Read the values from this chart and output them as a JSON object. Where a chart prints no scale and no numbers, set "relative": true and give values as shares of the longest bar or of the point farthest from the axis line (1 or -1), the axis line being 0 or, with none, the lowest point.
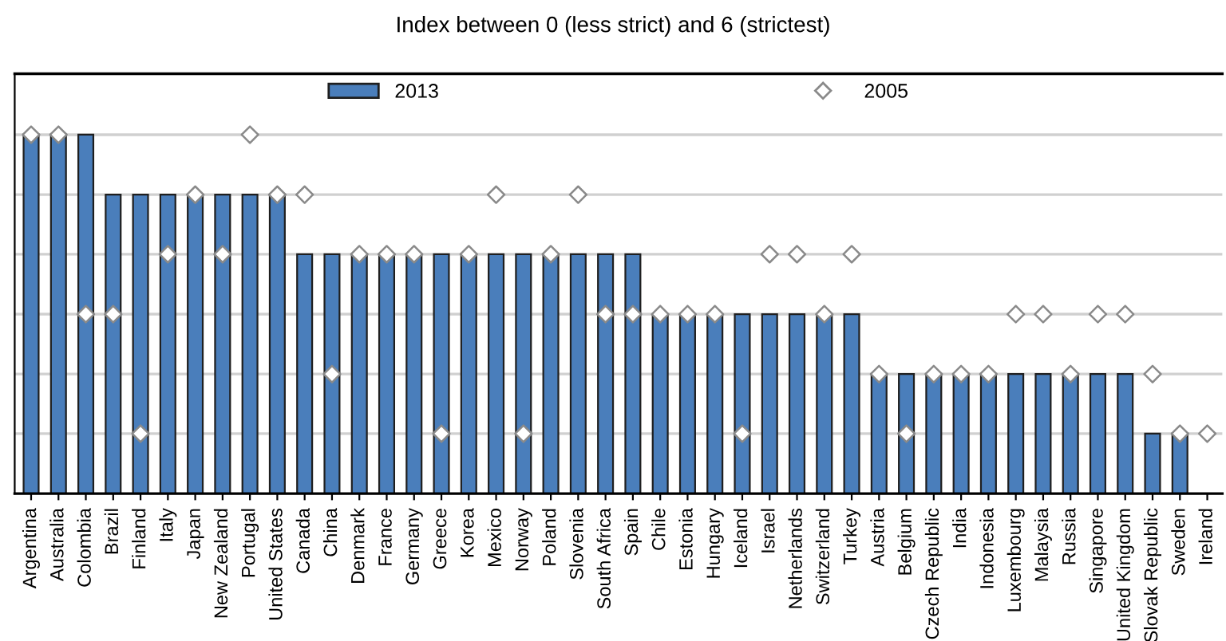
{
  "chart_data": {
    "type": "bar",
    "title": "Index between 0 (less strict) and 6 (strictest)",
    "relative": true,
    "grid": true,
    "legend": "top",
    "categories": [
      "Argentina",
      "Australia",
      "Colombia",
      "Brazil",
      "Finland",
      "Italy",
      "Japan",
      "New Zealand",
      "Portugal",
      "United States",
      "Canada",
      "China",
      "Denmark",
      "France",
      "Germany",
      "Greece",
      "Korea",
      "Mexico",
      "Norway",
      "Poland",
      "Slovenia",
      "South Africa",
      "Spain",
      "Chile",
      "Estonia",
      "Hungary",
      "Iceland",
      "Israel",
      "Netherlands",
      "Switzerland",
      "Turkey",
      "Austria",
      "Belgium",
      "Czech Republic",
      "India",
      "Indonesia",
      "Luxembourg",
      "Malaysia",
      "Russia",
      "Singapore",
      "United Kingdom",
      "Slovak Republic",
      "Sweden",
      "Ireland"
    ],
    "series": [
      {
        "name": "2013",
        "color": "#4a7ebb",
        "values": [
          1,
          1,
          1,
          0.833,
          0.833,
          0.833,
          0.833,
          0.833,
          0.833,
          0.833,
          0.667,
          0.667,
          0.667,
          0.667,
          0.667,
          0.667,
          0.667,
          0.667,
          0.667,
          0.667,
          0.667,
          0.667,
          0.667,
          0.5,
          0.5,
          0.5,
          0.5,
          0.5,
          0.5,
          0.5,
          0.5,
          0.333,
          0.333,
          0.333,
          0.333,
          0.333,
          0.333,
          0.333,
          0.333,
          0.333,
          0.333,
          0.167,
          0.167,
          0
        ]
      },
      {
        "name": "2005",
        "type": "scatter",
        "marker": "diamond",
        "color": "#8a8a8a",
        "values": [
          1,
          1,
          0.5,
          0.5,
          0.167,
          0.667,
          0.833,
          0.667,
          1,
          0.833,
          0.833,
          0.333,
          0.667,
          0.667,
          0.667,
          0.167,
          0.667,
          0.833,
          0.167,
          0.667,
          0.833,
          0.5,
          0.5,
          0.5,
          0.5,
          0.5,
          0.167,
          0.667,
          0.667,
          0.5,
          0.667,
          0.333,
          0.167,
          0.333,
          0.333,
          0.333,
          0.5,
          0.5,
          0.333,
          0.5,
          0.5,
          0.333,
          0.167,
          0.167
        ]
      }
    ]
  }
}
